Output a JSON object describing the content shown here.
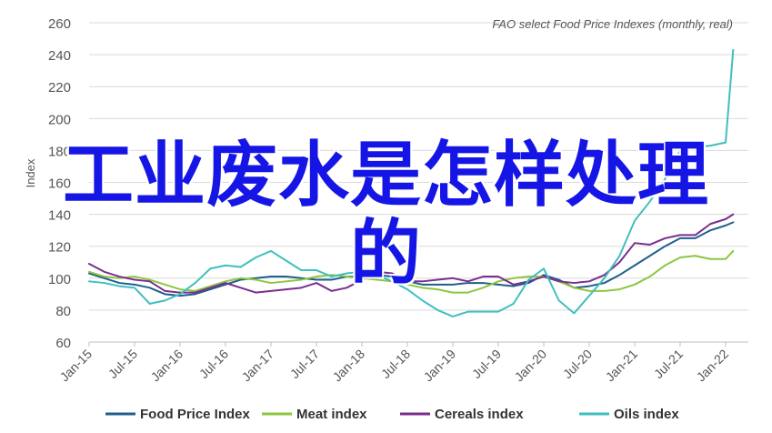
{
  "chart_data": {
    "type": "line",
    "title": "FAO select Food Price Indexes (monthly, real)",
    "ylabel": "Index",
    "xlabel": "",
    "ylim": [
      60,
      260
    ],
    "yticks": [
      60,
      80,
      100,
      120,
      140,
      160,
      180,
      200,
      220,
      240,
      260
    ],
    "x": [
      "2015-01",
      "2015-03",
      "2015-05",
      "2015-07",
      "2015-09",
      "2015-11",
      "2016-01",
      "2016-03",
      "2016-05",
      "2016-07",
      "2016-09",
      "2016-11",
      "2017-01",
      "2017-03",
      "2017-05",
      "2017-07",
      "2017-09",
      "2017-11",
      "2018-01",
      "2018-03",
      "2018-05",
      "2018-07",
      "2018-09",
      "2018-11",
      "2019-01",
      "2019-03",
      "2019-05",
      "2019-07",
      "2019-09",
      "2019-11",
      "2020-01",
      "2020-03",
      "2020-05",
      "2020-07",
      "2020-09",
      "2020-11",
      "2021-01",
      "2021-03",
      "2021-05",
      "2021-07",
      "2021-09",
      "2021-11",
      "2022-01",
      "2022-02"
    ],
    "xticks": [
      "Jan-15",
      "Jul-15",
      "Jan-16",
      "Jul-16",
      "Jan-17",
      "Jul-17",
      "Jan-18",
      "Jul-18",
      "Jan-19",
      "Jul-19",
      "Jan-20",
      "Jul-20",
      "Jan-21",
      "Jul-21",
      "Jan-22"
    ],
    "grid": "horizontal",
    "legend_position": "bottom",
    "series": [
      {
        "name": "Food Price Index",
        "color": "#1f5f8b",
        "values": [
          103,
          100,
          97,
          96,
          94,
          90,
          89,
          90,
          93,
          96,
          99,
          100,
          101,
          101,
          100,
          99,
          99,
          101,
          101,
          102,
          101,
          98,
          96,
          96,
          96,
          97,
          97,
          96,
          95,
          97,
          102,
          99,
          94,
          95,
          97,
          102,
          108,
          114,
          120,
          125,
          125,
          130,
          133,
          135
        ]
      },
      {
        "name": "Meat index",
        "color": "#8dc63f",
        "values": [
          104,
          101,
          100,
          101,
          99,
          96,
          93,
          92,
          95,
          98,
          100,
          99,
          97,
          98,
          99,
          101,
          102,
          101,
          100,
          99,
          98,
          96,
          94,
          93,
          91,
          91,
          94,
          98,
          100,
          101,
          101,
          98,
          94,
          92,
          92,
          93,
          96,
          101,
          108,
          113,
          114,
          112,
          112,
          117
        ]
      },
      {
        "name": "Cereals index",
        "color": "#7b2d8e",
        "values": [
          109,
          104,
          101,
          99,
          98,
          92,
          91,
          91,
          94,
          97,
          94,
          91,
          92,
          93,
          94,
          97,
          92,
          94,
          99,
          104,
          103,
          98,
          98,
          99,
          100,
          98,
          101,
          101,
          96,
          98,
          101,
          98,
          97,
          98,
          102,
          110,
          122,
          121,
          125,
          127,
          127,
          134,
          137,
          140
        ]
      },
      {
        "name": "Oils index",
        "color": "#3fbfbf",
        "values": [
          98,
          97,
          95,
          94,
          84,
          86,
          90,
          97,
          106,
          108,
          107,
          113,
          117,
          111,
          105,
          105,
          101,
          103,
          104,
          102,
          98,
          93,
          86,
          80,
          76,
          79,
          79,
          79,
          84,
          99,
          106,
          86,
          78,
          89,
          100,
          114,
          136,
          148,
          162,
          180,
          182,
          183,
          185,
          243
        ]
      }
    ]
  },
  "overlay": {
    "line1": "工业废水是怎样处理",
    "line2": "的"
  }
}
